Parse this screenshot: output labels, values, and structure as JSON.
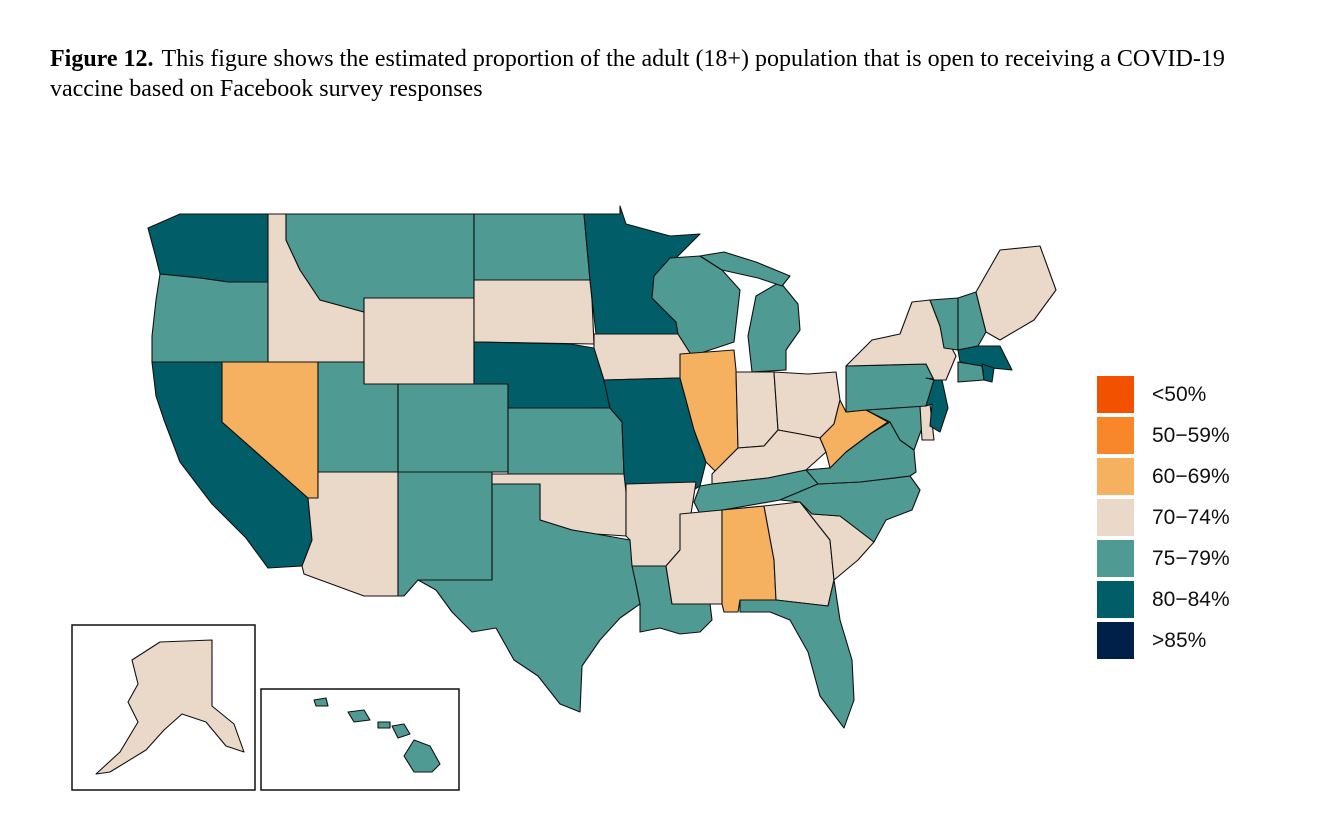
{
  "caption": {
    "label": "Figure 12.",
    "text": "This figure shows the estimated proportion of the adult (18+) population that is open to receiving a COVID-19 vaccine based on Facebook survey responses"
  },
  "legend": {
    "items": [
      {
        "label": "<50%",
        "color": "#F25100"
      },
      {
        "label": "50−59%",
        "color": "#F8862A"
      },
      {
        "label": "60−69%",
        "color": "#F5B060"
      },
      {
        "label": "70−74%",
        "color": "#EAD9C8"
      },
      {
        "label": "75−79%",
        "color": "#4F9A93"
      },
      {
        "label": "80−84%",
        "color": "#015E69"
      },
      {
        "label": ">85%",
        "color": "#00204A"
      }
    ]
  },
  "chart_data": {
    "type": "choropleth",
    "categories": [
      "<50%",
      "50−59%",
      "60−69%",
      "70−74%",
      "75−79%",
      "80−84%",
      ">85%"
    ],
    "states": {
      "Washington": "80−84%",
      "Oregon": "75−79%",
      "California": "80−84%",
      "Idaho": "70−74%",
      "Nevada": "60−69%",
      "Montana": "75−79%",
      "Wyoming": "70−74%",
      "Utah": "75−79%",
      "Colorado": "75−79%",
      "Arizona": "70−74%",
      "New Mexico": "75−79%",
      "North Dakota": "75−79%",
      "South Dakota": "70−74%",
      "Nebraska": "80−84%",
      "Kansas": "75−79%",
      "Oklahoma": "70−74%",
      "Texas": "75−79%",
      "Minnesota": "80−84%",
      "Iowa": "70−74%",
      "Missouri": "80−84%",
      "Arkansas": "70−74%",
      "Louisiana": "75−79%",
      "Wisconsin": "75−79%",
      "Illinois": "60−69%",
      "Michigan": "75−79%",
      "Indiana": "70−74%",
      "Ohio": "70−74%",
      "Kentucky": "70−74%",
      "Tennessee": "75−79%",
      "Mississippi": "70−74%",
      "Alabama": "60−69%",
      "Georgia": "70−74%",
      "Florida": "75−79%",
      "South Carolina": "70−74%",
      "North Carolina": "75−79%",
      "Virginia": "75−79%",
      "West Virginia": "60−69%",
      "Maryland": "75−79%",
      "Delaware": "70−74%",
      "Pennsylvania": "75−79%",
      "New Jersey": "80−84%",
      "New York": "70−74%",
      "Connecticut": "75−79%",
      "Rhode Island": "80−84%",
      "Massachusetts": "80−84%",
      "Vermont": "75−79%",
      "New Hampshire": "75−79%",
      "Maine": "70−74%",
      "Alaska": "70−74%",
      "Hawaii": "75−79%"
    }
  }
}
